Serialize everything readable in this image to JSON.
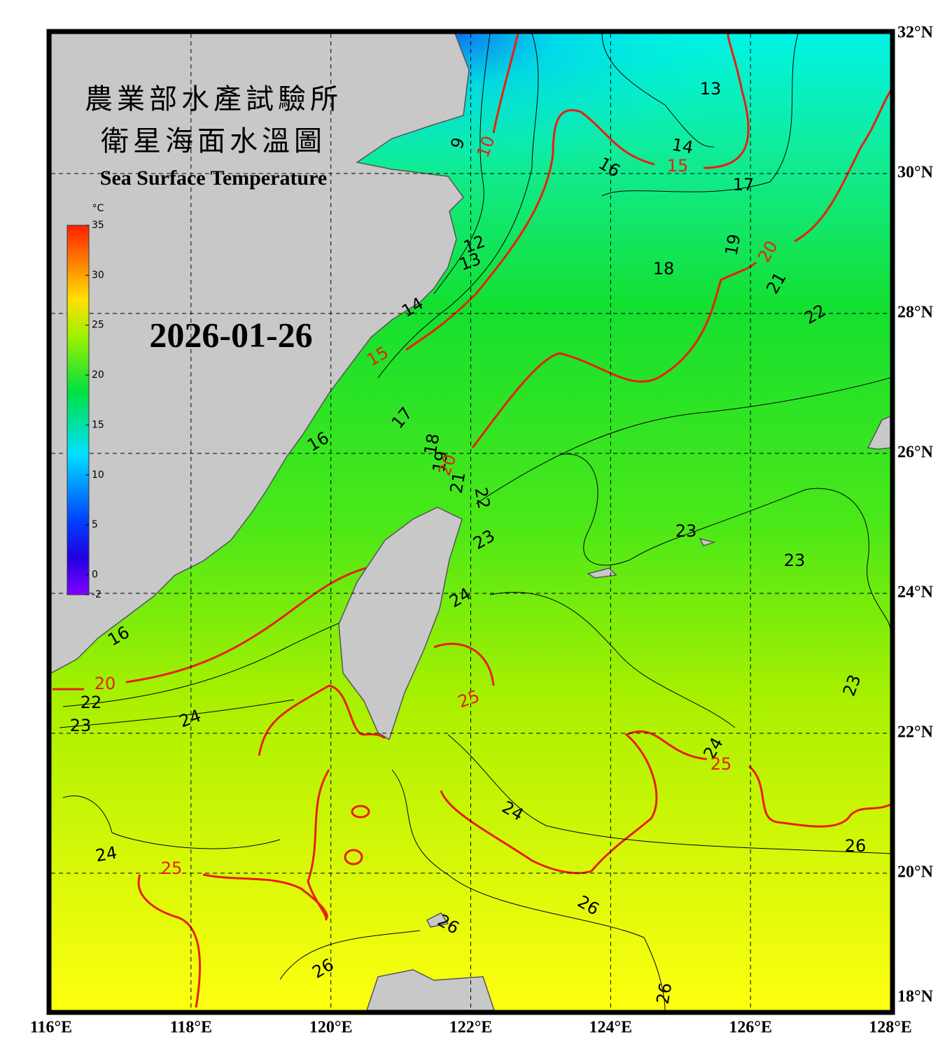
{
  "map": {
    "title_lines": [
      "農業部水產試驗所",
      "衛星海面水溫圖"
    ],
    "subtitle": "Sea Surface Temperature",
    "date": "2026-01-26",
    "lon_range": [
      116,
      128
    ],
    "lat_range": [
      18,
      32
    ],
    "lon_ticks": [
      {
        "value": 116,
        "label": "116°E"
      },
      {
        "value": 118,
        "label": "118°E"
      },
      {
        "value": 120,
        "label": "120°E"
      },
      {
        "value": 122,
        "label": "122°E"
      },
      {
        "value": 124,
        "label": "124°E"
      },
      {
        "value": 126,
        "label": "126°E"
      },
      {
        "value": 128,
        "label": "128°E"
      }
    ],
    "lat_ticks": [
      {
        "value": 18,
        "label": "18°N"
      },
      {
        "value": 20,
        "label": "20°N"
      },
      {
        "value": 22,
        "label": "22°N"
      },
      {
        "value": 24,
        "label": "24°N"
      },
      {
        "value": 26,
        "label": "26°N"
      },
      {
        "value": 28,
        "label": "28°N"
      },
      {
        "value": 30,
        "label": "30°N"
      },
      {
        "value": 32,
        "label": "32°N"
      }
    ],
    "grid": true,
    "colorbar": {
      "unit": "°C",
      "range": [
        -2,
        35
      ],
      "ticks": [
        35,
        30,
        25,
        20,
        15,
        10,
        5,
        0,
        -2
      ]
    },
    "contour_labels": [
      13,
      14,
      15,
      16,
      17,
      9,
      10,
      12,
      13,
      18,
      19,
      20,
      21,
      22,
      14,
      15,
      17,
      16,
      18,
      19,
      20,
      21,
      22,
      23,
      23,
      23,
      24,
      16,
      20,
      22,
      23,
      24,
      25,
      23,
      24,
      25,
      24,
      26,
      24,
      25,
      26,
      26,
      26,
      26
    ]
  }
}
